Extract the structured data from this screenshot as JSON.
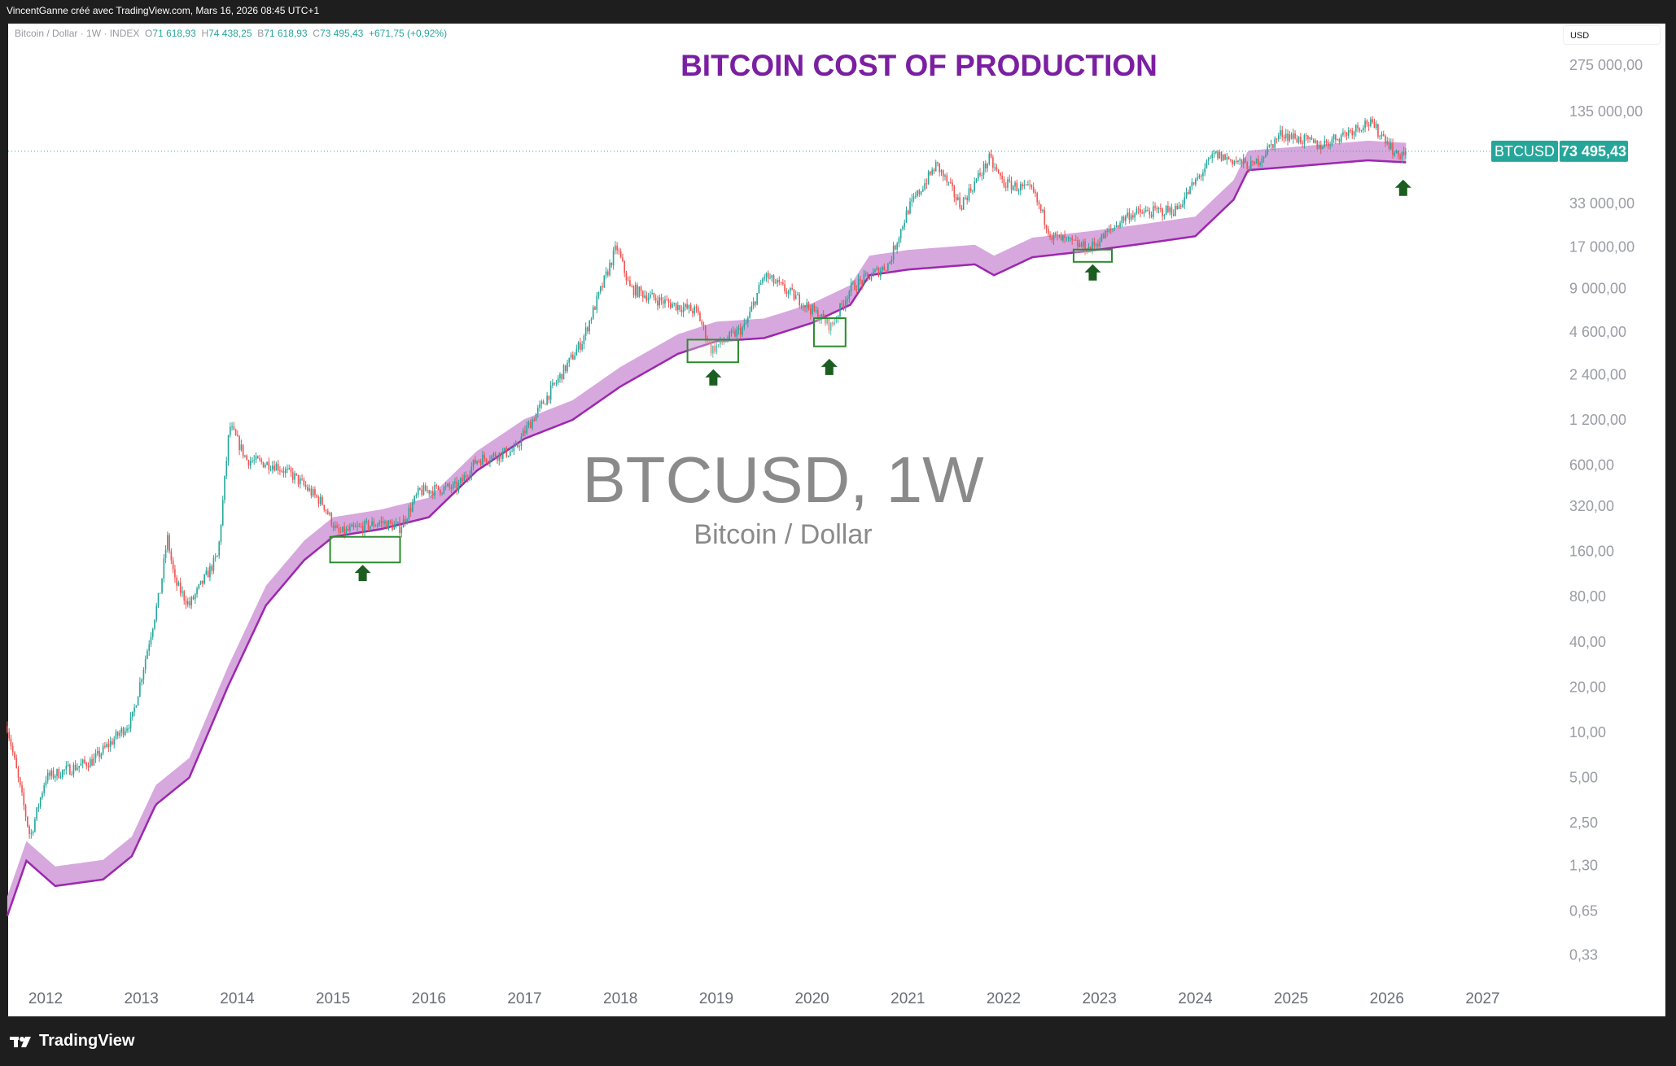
{
  "header": {
    "credit": "VincentGanne créé avec TradingView.com, Mars 16, 2026 08:45 UTC+1"
  },
  "legend": {
    "symbol": "Bitcoin / Dollar · 1W · INDEX",
    "o_label": "O",
    "o": "71 618,93",
    "h_label": "H",
    "h": "74 438,25",
    "b_label": "B",
    "b": "71 618,93",
    "c_label": "C",
    "c": "73 495,43",
    "change": "+671,75 (+0,92%)"
  },
  "currency_button": "USD",
  "price_tag": {
    "symbol": "BTCUSD",
    "price": "73 495,43"
  },
  "watermark": {
    "title": "BTCUSD, 1W",
    "subtitle": "Bitcoin / Dollar"
  },
  "footer": {
    "brand": "TradingView"
  },
  "colors": {
    "up": "#26a69a",
    "down": "#ef5350",
    "band": "#d7a8dd",
    "band_line": "#9c27b0",
    "title": "#7b1fa2",
    "annotation": "#2e8b2e",
    "arrow": "#1b5e20"
  },
  "chart_data": {
    "type": "candlestick",
    "title": "BITCOIN COST OF PRODUCTION",
    "y_scale": "log",
    "y_ticks": [
      {
        "v": 275000,
        "label": "275 000,00"
      },
      {
        "v": 135000,
        "label": "135 000,00"
      },
      {
        "v": 33000,
        "label": "33 000,00"
      },
      {
        "v": 17000,
        "label": "17 000,00"
      },
      {
        "v": 9000,
        "label": "9 000,00"
      },
      {
        "v": 4600,
        "label": "4 600,00"
      },
      {
        "v": 2400,
        "label": "2 400,00"
      },
      {
        "v": 1200,
        "label": "1 200,00"
      },
      {
        "v": 600,
        "label": "600,00"
      },
      {
        "v": 320,
        "label": "320,00"
      },
      {
        "v": 160,
        "label": "160,00"
      },
      {
        "v": 80,
        "label": "80,00"
      },
      {
        "v": 40,
        "label": "40,00"
      },
      {
        "v": 20,
        "label": "20,00"
      },
      {
        "v": 10,
        "label": "10,00"
      },
      {
        "v": 5,
        "label": "5,00"
      },
      {
        "v": 2.5,
        "label": "2,50"
      },
      {
        "v": 1.3,
        "label": "1,30"
      },
      {
        "v": 0.65,
        "label": "0,65"
      },
      {
        "v": 0.33,
        "label": "0,33"
      }
    ],
    "x_ticks": [
      "2012",
      "2013",
      "2014",
      "2015",
      "2016",
      "2017",
      "2018",
      "2019",
      "2020",
      "2021",
      "2022",
      "2023",
      "2024",
      "2025",
      "2026",
      "2027"
    ],
    "last_price": 73495.43,
    "price_path": [
      [
        2011.6,
        11
      ],
      [
        2011.84,
        2
      ],
      [
        2012.0,
        5
      ],
      [
        2012.5,
        6.5
      ],
      [
        2012.9,
        12
      ],
      [
        2013.2,
        90
      ],
      [
        2013.27,
        200
      ],
      [
        2013.35,
        100
      ],
      [
        2013.5,
        70
      ],
      [
        2013.8,
        150
      ],
      [
        2013.92,
        1100
      ],
      [
        2014.1,
        650
      ],
      [
        2014.4,
        600
      ],
      [
        2014.6,
        500
      ],
      [
        2014.9,
        330
      ],
      [
        2015.05,
        210
      ],
      [
        2015.5,
        250
      ],
      [
        2015.7,
        230
      ],
      [
        2015.9,
        400
      ],
      [
        2016.3,
        430
      ],
      [
        2016.5,
        650
      ],
      [
        2016.9,
        750
      ],
      [
        2017.0,
        1000
      ],
      [
        2017.4,
        2500
      ],
      [
        2017.6,
        4000
      ],
      [
        2017.96,
        17000
      ],
      [
        2018.1,
        9000
      ],
      [
        2018.4,
        7500
      ],
      [
        2018.8,
        6300
      ],
      [
        2018.95,
        3500
      ],
      [
        2019.3,
        5000
      ],
      [
        2019.5,
        11000
      ],
      [
        2019.9,
        7300
      ],
      [
        2020.2,
        5000
      ],
      [
        2020.4,
        9000
      ],
      [
        2020.8,
        13000
      ],
      [
        2021.0,
        30000
      ],
      [
        2021.3,
        60000
      ],
      [
        2021.55,
        32000
      ],
      [
        2021.85,
        65000
      ],
      [
        2022.0,
        45000
      ],
      [
        2022.3,
        40000
      ],
      [
        2022.5,
        20000
      ],
      [
        2022.9,
        16500
      ],
      [
        2023.3,
        28000
      ],
      [
        2023.8,
        30000
      ],
      [
        2024.2,
        70000
      ],
      [
        2024.6,
        58000
      ],
      [
        2024.9,
        97000
      ],
      [
        2025.3,
        80000
      ],
      [
        2025.8,
        115000
      ],
      [
        2026.0,
        88000
      ],
      [
        2026.1,
        68000
      ],
      [
        2026.2,
        73495
      ]
    ],
    "cost_band_lower": [
      [
        2011.6,
        0.6
      ],
      [
        2011.8,
        1.4
      ],
      [
        2012.1,
        0.95
      ],
      [
        2012.6,
        1.05
      ],
      [
        2012.9,
        1.5
      ],
      [
        2013.15,
        3.3
      ],
      [
        2013.5,
        5
      ],
      [
        2013.9,
        20
      ],
      [
        2014.3,
        70
      ],
      [
        2014.7,
        140
      ],
      [
        2015.0,
        200
      ],
      [
        2015.5,
        225
      ],
      [
        2016.0,
        270
      ],
      [
        2016.5,
        550
      ],
      [
        2017.0,
        900
      ],
      [
        2017.5,
        1200
      ],
      [
        2018.0,
        2000
      ],
      [
        2018.6,
        3300
      ],
      [
        2019.0,
        4000
      ],
      [
        2019.5,
        4200
      ],
      [
        2020.0,
        5300
      ],
      [
        2020.4,
        7000
      ],
      [
        2020.6,
        11000
      ],
      [
        2021.0,
        12000
      ],
      [
        2021.7,
        13000
      ],
      [
        2021.9,
        11000
      ],
      [
        2022.3,
        14500
      ],
      [
        2022.9,
        16000
      ],
      [
        2023.5,
        18000
      ],
      [
        2024.0,
        20000
      ],
      [
        2024.4,
        35000
      ],
      [
        2024.55,
        55000
      ],
      [
        2025.0,
        58000
      ],
      [
        2025.8,
        64000
      ],
      [
        2026.2,
        62000
      ]
    ],
    "cost_band_ratio": 1.35,
    "annotation_boxes": [
      {
        "x0": 2014.97,
        "x1": 2015.7,
        "y0": 135,
        "y1": 200
      },
      {
        "x0": 2018.7,
        "x1": 2019.23,
        "y0": 2900,
        "y1": 4100
      },
      {
        "x0": 2020.02,
        "x1": 2020.35,
        "y0": 3700,
        "y1": 5700
      },
      {
        "x0": 2022.73,
        "x1": 2023.13,
        "y0": 13500,
        "y1": 16300
      }
    ],
    "buy_arrows": [
      {
        "x": 2015.31,
        "y": 115
      },
      {
        "x": 2018.97,
        "y": 2300
      },
      {
        "x": 2020.18,
        "y": 2700
      },
      {
        "x": 2022.93,
        "y": 11500
      },
      {
        "x": 2026.17,
        "y": 42000
      }
    ]
  }
}
